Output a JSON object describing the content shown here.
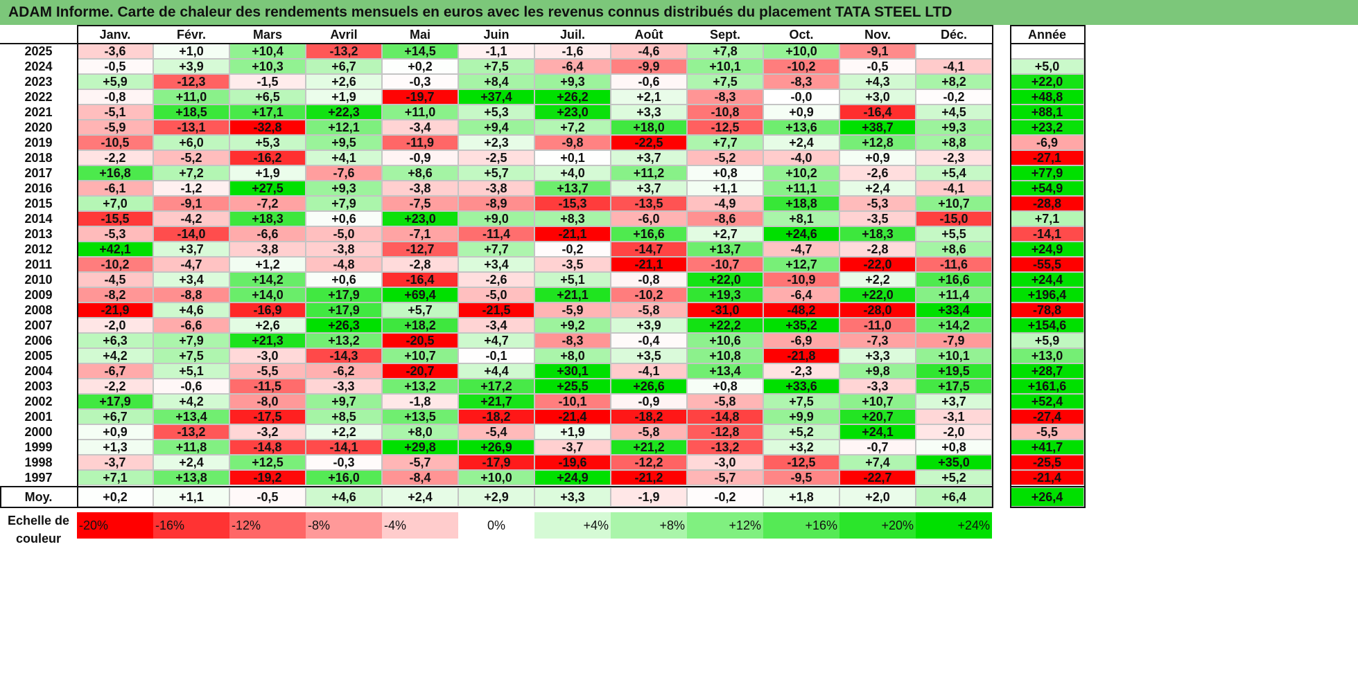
{
  "title": "ADAM Informe. Carte de chaleur des rendements mensuels en euros avec les revenus connus distribués du placement TATA STEEL LTD",
  "chart_data": {
    "type": "heatmap",
    "months": [
      "Janv.",
      "Févr.",
      "Mars",
      "Avril",
      "Mai",
      "Juin",
      "Juil.",
      "Août",
      "Sept.",
      "Oct.",
      "Nov.",
      "Déc."
    ],
    "year_header": "Année",
    "rows": [
      {
        "year": "2025",
        "values": [
          "-3,6",
          "+1,0",
          "+10,4",
          "-13,2",
          "+14,5",
          "-1,1",
          "-1,6",
          "-4,6",
          "+7,8",
          "+10,0",
          "-9,1",
          ""
        ],
        "annual": ""
      },
      {
        "year": "2024",
        "values": [
          "-0,5",
          "+3,9",
          "+10,3",
          "+6,7",
          "+0,2",
          "+7,5",
          "-6,4",
          "-9,9",
          "+10,1",
          "-10,2",
          "-0,5",
          "-4,1"
        ],
        "annual": "+5,0"
      },
      {
        "year": "2023",
        "values": [
          "+5,9",
          "-12,3",
          "-1,5",
          "+2,6",
          "-0,3",
          "+8,4",
          "+9,3",
          "-0,6",
          "+7,5",
          "-8,3",
          "+4,3",
          "+8,2"
        ],
        "annual": "+22,0"
      },
      {
        "year": "2022",
        "values": [
          "-0,8",
          "+11,0",
          "+6,5",
          "+1,9",
          "-19,7",
          "+37,4",
          "+26,2",
          "+2,1",
          "-8,3",
          "-0,0",
          "+3,0",
          "-0,2"
        ],
        "annual": "+48,8"
      },
      {
        "year": "2021",
        "values": [
          "-5,1",
          "+18,5",
          "+17,1",
          "+22,3",
          "+11,0",
          "+5,3",
          "+23,0",
          "+3,3",
          "-10,8",
          "+0,9",
          "-16,4",
          "+4,5"
        ],
        "annual": "+88,1"
      },
      {
        "year": "2020",
        "values": [
          "-5,9",
          "-13,1",
          "-32,8",
          "+12,1",
          "-3,4",
          "+9,4",
          "+7,2",
          "+18,0",
          "-12,5",
          "+13,6",
          "+38,7",
          "+9,3"
        ],
        "annual": "+23,2"
      },
      {
        "year": "2019",
        "values": [
          "-10,5",
          "+6,0",
          "+5,3",
          "+9,5",
          "-11,9",
          "+2,3",
          "-9,8",
          "-22,5",
          "+7,7",
          "+2,4",
          "+12,8",
          "+8,8"
        ],
        "annual": "-6,9"
      },
      {
        "year": "2018",
        "values": [
          "-2,2",
          "-5,2",
          "-16,2",
          "+4,1",
          "-0,9",
          "-2,5",
          "+0,1",
          "+3,7",
          "-5,2",
          "-4,0",
          "+0,9",
          "-2,3"
        ],
        "annual": "-27,1"
      },
      {
        "year": "2017",
        "values": [
          "+16,8",
          "+7,2",
          "+1,9",
          "-7,6",
          "+8,6",
          "+5,7",
          "+4,0",
          "+11,2",
          "+0,8",
          "+10,2",
          "-2,6",
          "+5,4"
        ],
        "annual": "+77,9"
      },
      {
        "year": "2016",
        "values": [
          "-6,1",
          "-1,2",
          "+27,5",
          "+9,3",
          "-3,8",
          "-3,8",
          "+13,7",
          "+3,7",
          "+1,1",
          "+11,1",
          "+2,4",
          "-4,1"
        ],
        "annual": "+54,9"
      },
      {
        "year": "2015",
        "values": [
          "+7,0",
          "-9,1",
          "-7,2",
          "+7,9",
          "-7,5",
          "-8,9",
          "-15,3",
          "-13,5",
          "-4,9",
          "+18,8",
          "-5,3",
          "+10,7"
        ],
        "annual": "-28,8"
      },
      {
        "year": "2014",
        "values": [
          "-15,5",
          "-4,2",
          "+18,3",
          "+0,6",
          "+23,0",
          "+9,0",
          "+8,3",
          "-6,0",
          "-8,6",
          "+8,1",
          "-3,5",
          "-15,0"
        ],
        "annual": "+7,1"
      },
      {
        "year": "2013",
        "values": [
          "-5,3",
          "-14,0",
          "-6,6",
          "-5,0",
          "-7,1",
          "-11,4",
          "-21,1",
          "+16,6",
          "+2,7",
          "+24,6",
          "+18,3",
          "+5,5"
        ],
        "annual": "-14,1"
      },
      {
        "year": "2012",
        "values": [
          "+42,1",
          "+3,7",
          "-3,8",
          "-3,8",
          "-12,7",
          "+7,7",
          "-0,2",
          "-14,7",
          "+13,7",
          "-4,7",
          "-2,8",
          "+8,6"
        ],
        "annual": "+24,9"
      },
      {
        "year": "2011",
        "values": [
          "-10,2",
          "-4,7",
          "+1,2",
          "-4,8",
          "-2,8",
          "+3,4",
          "-3,5",
          "-21,1",
          "-10,7",
          "+12,7",
          "-22,0",
          "-11,6"
        ],
        "annual": "-55,5"
      },
      {
        "year": "2010",
        "values": [
          "-4,5",
          "+3,4",
          "+14,2",
          "+0,6",
          "-16,4",
          "-2,6",
          "+5,1",
          "-0,8",
          "+22,0",
          "-10,9",
          "+2,2",
          "+16,6"
        ],
        "annual": "+24,4"
      },
      {
        "year": "2009",
        "values": [
          "-8,2",
          "-8,8",
          "+14,0",
          "+17,9",
          "+69,4",
          "-5,0",
          "+21,1",
          "-10,2",
          "+19,3",
          "-6,4",
          "+22,0",
          "+11,4"
        ],
        "annual": "+196,4"
      },
      {
        "year": "2008",
        "values": [
          "-21,9",
          "+4,6",
          "-16,9",
          "+17,9",
          "+5,7",
          "-21,5",
          "-5,9",
          "-5,8",
          "-31,0",
          "-48,2",
          "-28,0",
          "+33,4"
        ],
        "annual": "-78,8"
      },
      {
        "year": "2007",
        "values": [
          "-2,0",
          "-6,6",
          "+2,6",
          "+26,3",
          "+18,2",
          "-3,4",
          "+9,2",
          "+3,9",
          "+22,2",
          "+35,2",
          "-11,0",
          "+14,2"
        ],
        "annual": "+154,6"
      },
      {
        "year": "2006",
        "values": [
          "+6,3",
          "+7,9",
          "+21,3",
          "+13,2",
          "-20,5",
          "+4,7",
          "-8,3",
          "-0,4",
          "+10,6",
          "-6,9",
          "-7,3",
          "-7,9"
        ],
        "annual": "+5,9"
      },
      {
        "year": "2005",
        "values": [
          "+4,2",
          "+7,5",
          "-3,0",
          "-14,3",
          "+10,7",
          "-0,1",
          "+8,0",
          "+3,5",
          "+10,8",
          "-21,8",
          "+3,3",
          "+10,1"
        ],
        "annual": "+13,0"
      },
      {
        "year": "2004",
        "values": [
          "-6,7",
          "+5,1",
          "-5,5",
          "-6,2",
          "-20,7",
          "+4,4",
          "+30,1",
          "-4,1",
          "+13,4",
          "-2,3",
          "+9,8",
          "+19,5"
        ],
        "annual": "+28,7"
      },
      {
        "year": "2003",
        "values": [
          "-2,2",
          "-0,6",
          "-11,5",
          "-3,3",
          "+13,2",
          "+17,2",
          "+25,5",
          "+26,6",
          "+0,8",
          "+33,6",
          "-3,3",
          "+17,5"
        ],
        "annual": "+161,6"
      },
      {
        "year": "2002",
        "values": [
          "+17,9",
          "+4,2",
          "-8,0",
          "+9,7",
          "-1,8",
          "+21,7",
          "-10,1",
          "-0,9",
          "-5,8",
          "+7,5",
          "+10,7",
          "+3,7"
        ],
        "annual": "+52,4"
      },
      {
        "year": "2001",
        "values": [
          "+6,7",
          "+13,4",
          "-17,5",
          "+8,5",
          "+13,5",
          "-18,2",
          "-21,4",
          "-18,2",
          "-14,8",
          "+9,9",
          "+20,7",
          "-3,1"
        ],
        "annual": "-27,4"
      },
      {
        "year": "2000",
        "values": [
          "+0,9",
          "-13,2",
          "-3,2",
          "+2,2",
          "+8,0",
          "-5,4",
          "+1,9",
          "-5,8",
          "-12,8",
          "+5,2",
          "+24,1",
          "-2,0"
        ],
        "annual": "-5,5"
      },
      {
        "year": "1999",
        "values": [
          "+1,3",
          "+11,8",
          "-14,8",
          "-14,1",
          "+29,8",
          "+26,9",
          "-3,7",
          "+21,2",
          "-13,2",
          "+3,2",
          "-0,7",
          "+0,8"
        ],
        "annual": "+41,7"
      },
      {
        "year": "1998",
        "values": [
          "-3,7",
          "+2,4",
          "+12,5",
          "-0,3",
          "-5,7",
          "-17,9",
          "-19,6",
          "-12,2",
          "-3,0",
          "-12,5",
          "+7,4",
          "+35,0"
        ],
        "annual": "-25,5"
      },
      {
        "year": "1997",
        "values": [
          "+7,1",
          "+13,8",
          "-19,2",
          "+16,0",
          "-8,4",
          "+10,0",
          "+24,9",
          "-21,2",
          "-5,7",
          "-9,5",
          "-22,7",
          "+5,2"
        ],
        "annual": "-21,4"
      }
    ],
    "average": {
      "label": "Moy.",
      "values": [
        "+0,2",
        "+1,1",
        "-0,5",
        "+4,6",
        "+2,4",
        "+2,9",
        "+3,3",
        "-1,9",
        "-0,2",
        "+1,8",
        "+2,0",
        "+6,4"
      ],
      "annual": "+26,4"
    },
    "legend": {
      "label_line1": "Echelle de",
      "label_line2": "couleur",
      "steps": [
        "-20%",
        "-16%",
        "-12%",
        "-8%",
        "-4%",
        "0%",
        "+4%",
        "+8%",
        "+12%",
        "+16%",
        "+20%",
        "+24%"
      ],
      "step_values": [
        -20,
        -16,
        -12,
        -8,
        -4,
        0,
        4,
        8,
        12,
        16,
        20,
        24
      ]
    },
    "colors": {
      "negative": "#ff0000",
      "neutral": "#ffffff",
      "positive": "#00e000"
    }
  }
}
